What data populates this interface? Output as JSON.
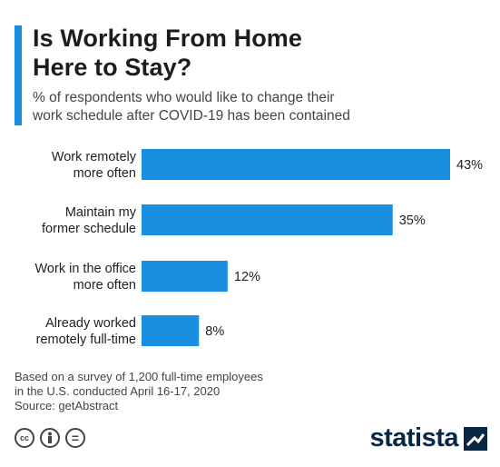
{
  "title": "Is Working From Home\nHere to Stay?",
  "subtitle": "% of respondents who would like to change their\nwork schedule after COVID-19 has been contained",
  "colors": {
    "bar": "#1a8ee0",
    "accent": "#1a8ee0",
    "brand": "#0b2746"
  },
  "chart_data": {
    "type": "bar",
    "orientation": "horizontal",
    "categories": [
      [
        "Work remotely",
        "more often"
      ],
      [
        "Maintain my",
        "former schedule"
      ],
      [
        "Work in the office",
        "more often"
      ],
      [
        "Already worked",
        "remotely full-time"
      ]
    ],
    "values": [
      43,
      35,
      12,
      8
    ],
    "value_labels": [
      "43%",
      "35%",
      "12%",
      "8%"
    ],
    "unit": "%",
    "title": "Is Working From Home Here to Stay?",
    "grid": false
  },
  "footnote": "Based on a survey of 1,200 full-time employees\nin the U.S. conducted April 16-17, 2020",
  "source": "Source: getAbstract",
  "license_icons": [
    "cc-icon",
    "person-icon",
    "equals-icon"
  ],
  "license_icon_text": [
    "cc",
    "",
    "="
  ],
  "brand": {
    "name": "statista",
    "icon": "statista-logo-icon"
  }
}
